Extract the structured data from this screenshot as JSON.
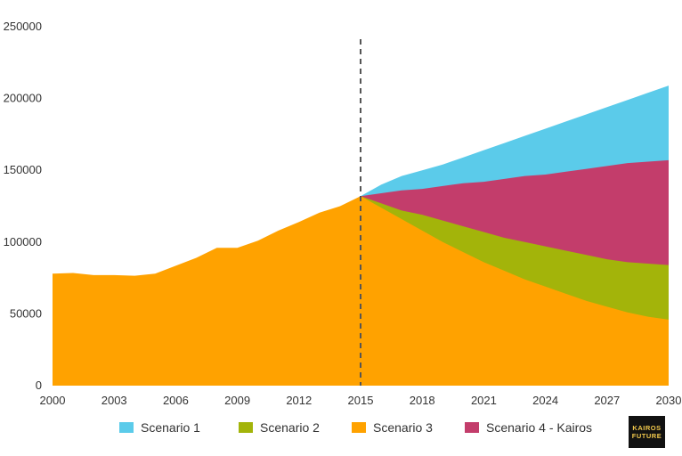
{
  "chart_data": {
    "type": "area",
    "x": [
      2000,
      2001,
      2002,
      2003,
      2004,
      2005,
      2006,
      2007,
      2008,
      2009,
      2010,
      2011,
      2012,
      2013,
      2014,
      2015,
      2016,
      2017,
      2018,
      2019,
      2020,
      2021,
      2022,
      2023,
      2024,
      2025,
      2026,
      2027,
      2028,
      2029,
      2030
    ],
    "ylim": [
      0,
      250000
    ],
    "yticks": [
      "0",
      "50000",
      "100000",
      "150000",
      "200000",
      "250000"
    ],
    "xticks": [
      "2000",
      "2003",
      "2006",
      "2009",
      "2012",
      "2015",
      "2018",
      "2021",
      "2024",
      "2027",
      "2030"
    ],
    "marker_year": 2015,
    "series": [
      {
        "name": "Scenario 1",
        "color": "#5bcbea",
        "values": [
          null,
          null,
          null,
          null,
          null,
          null,
          null,
          null,
          null,
          null,
          null,
          null,
          null,
          null,
          null,
          132000,
          140000,
          146000,
          150000,
          154000,
          159000,
          164000,
          169000,
          174000,
          179000,
          184000,
          189000,
          194000,
          199000,
          204000,
          209000
        ]
      },
      {
        "name": "Scenario 4 - Kairos",
        "color": "#c33d6b",
        "values": [
          null,
          null,
          null,
          null,
          null,
          null,
          null,
          null,
          null,
          null,
          null,
          null,
          null,
          null,
          null,
          132000,
          134000,
          136000,
          137000,
          139000,
          141000,
          142000,
          144000,
          146000,
          147000,
          149000,
          151000,
          153000,
          155000,
          156000,
          157000
        ]
      },
      {
        "name": "Scenario 2",
        "color": "#a3b40a",
        "values": [
          null,
          null,
          null,
          null,
          null,
          null,
          null,
          null,
          null,
          null,
          null,
          null,
          null,
          null,
          null,
          132000,
          127000,
          122000,
          119000,
          115000,
          111000,
          107000,
          103000,
          100000,
          97000,
          94000,
          91000,
          88000,
          86000,
          85000,
          84000
        ]
      },
      {
        "name": "Scenario 3",
        "color": "#ffa200",
        "values": [
          78000,
          78500,
          77000,
          77000,
          76500,
          78000,
          83500,
          89000,
          96000,
          96000,
          101000,
          108000,
          114000,
          120500,
          125000,
          132000,
          124000,
          116000,
          108000,
          100000,
          93000,
          86000,
          80000,
          74000,
          69000,
          64000,
          59000,
          55000,
          51000,
          48000,
          46000
        ]
      }
    ],
    "legend": [
      "Scenario 1",
      "Scenario 2",
      "Scenario 3",
      "Scenario 4 - Kairos"
    ]
  },
  "logo": {
    "line1": "KAIROS",
    "line2": "FUTURE"
  }
}
